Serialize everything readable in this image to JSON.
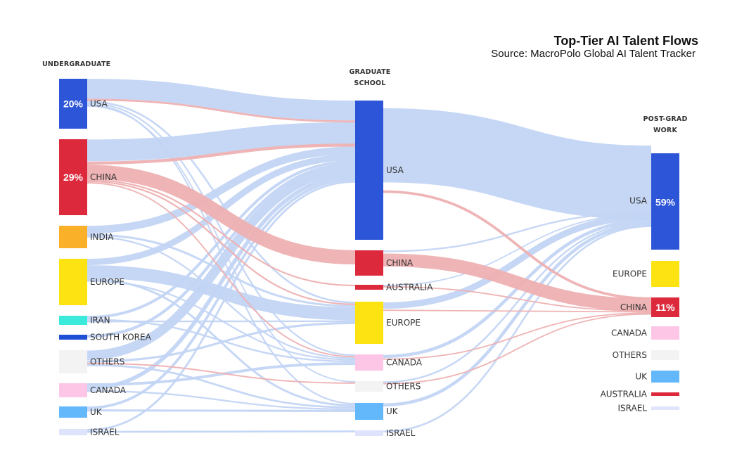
{
  "chart_data": {
    "type": "sankey",
    "title": "Top-Tier AI Talent Flows",
    "subtitle": "Source: MacroPolo Global AI Talent Tracker",
    "columns": [
      "UNDERGRADUATE",
      "GRADUATE SCHOOL",
      "POST-GRAD WORK"
    ],
    "column_heads": {
      "undergrad": "UNDERGRADUATE",
      "grad_line1": "GRADUATE",
      "grad_line2": "SCHOOL",
      "post_line1": "POST-GRAD",
      "post_line2": "WORK"
    },
    "colors": {
      "USA": "#2d55d8",
      "CHINA": "#dc2a3c",
      "INDIA": "#fbb02a",
      "EUROPE": "#fde312",
      "IRAN": "#3ceadb",
      "SOUTH KOREA": "#1e4fd4",
      "OTHERS": "#f3f3f3",
      "CANADA": "#fdc6e6",
      "UK": "#63b8fc",
      "ISRAEL": "#dfe3fb",
      "AUSTRALIA": "#dc2a3c",
      "flow_blue": "#c3d5f4",
      "flow_red": "#eeb0b1"
    },
    "nodes": {
      "undergrad": [
        {
          "name": "USA",
          "value": 20,
          "pct_label": "20%"
        },
        {
          "name": "CHINA",
          "value": 29,
          "pct_label": "29%"
        },
        {
          "name": "INDIA",
          "value": 8.5
        },
        {
          "name": "EUROPE",
          "value": 18
        },
        {
          "name": "IRAN",
          "value": 3
        },
        {
          "name": "SOUTH KOREA",
          "value": 2
        },
        {
          "name": "OTHERS",
          "value": 8
        },
        {
          "name": "CANADA",
          "value": 5
        },
        {
          "name": "UK",
          "value": 4
        },
        {
          "name": "ISRAEL",
          "value": 2.5
        }
      ],
      "grad": [
        {
          "name": "USA",
          "value": 56
        },
        {
          "name": "CHINA",
          "value": 10
        },
        {
          "name": "AUSTRALIA",
          "value": 2
        },
        {
          "name": "EUROPE",
          "value": 16
        },
        {
          "name": "CANADA",
          "value": 6
        },
        {
          "name": "OTHERS",
          "value": 4
        },
        {
          "name": "UK",
          "value": 6.5
        },
        {
          "name": "ISRAEL",
          "value": 2
        }
      ],
      "post": [
        {
          "name": "USA",
          "value": 59,
          "pct_label": "59%"
        },
        {
          "name": "EUROPE",
          "value": 10
        },
        {
          "name": "CHINA",
          "value": 11,
          "pct_label": "11%"
        },
        {
          "name": "CANADA",
          "value": 5
        },
        {
          "name": "OTHERS",
          "value": 3.5
        },
        {
          "name": "UK",
          "value": 4.5
        },
        {
          "name": "AUSTRALIA",
          "value": 1.5
        },
        {
          "name": "ISRAEL",
          "value": 1.5
        }
      ]
    },
    "flows_stage1": [
      {
        "from": "USA",
        "to": "USA",
        "value": 8,
        "color": "blue"
      },
      {
        "from": "USA",
        "to": "USA",
        "value": 0.8,
        "color": "red"
      },
      {
        "from": "USA",
        "to": "EUROPE",
        "value": 0.7,
        "color": "blue"
      },
      {
        "from": "USA",
        "to": "CANADA",
        "value": 0.6,
        "color": "blue"
      },
      {
        "from": "USA",
        "to": "UK",
        "value": 0.6,
        "color": "blue"
      },
      {
        "from": "USA",
        "to": "OTHERS",
        "value": 0.5,
        "color": "blue"
      },
      {
        "from": "CHINA",
        "to": "USA",
        "value": 8.5,
        "color": "blue"
      },
      {
        "from": "CHINA",
        "to": "USA",
        "value": 1.2,
        "color": "red"
      },
      {
        "from": "CHINA",
        "to": "CHINA",
        "value": 5.5,
        "color": "red"
      },
      {
        "from": "CHINA",
        "to": "AUSTRALIA",
        "value": 0.6,
        "color": "red"
      },
      {
        "from": "CHINA",
        "to": "EUROPE",
        "value": 0.6,
        "color": "red"
      },
      {
        "from": "CHINA",
        "to": "CANADA",
        "value": 0.5,
        "color": "red"
      },
      {
        "from": "INDIA",
        "to": "USA",
        "value": 3,
        "color": "blue"
      },
      {
        "from": "INDIA",
        "to": "EUROPE",
        "value": 0.8,
        "color": "blue"
      },
      {
        "from": "INDIA",
        "to": "CANADA",
        "value": 0.6,
        "color": "blue"
      },
      {
        "from": "EUROPE",
        "to": "USA",
        "value": 2.5,
        "color": "blue"
      },
      {
        "from": "EUROPE",
        "to": "EUROPE",
        "value": 5,
        "color": "blue"
      },
      {
        "from": "EUROPE",
        "to": "UK",
        "value": 0.8,
        "color": "blue"
      },
      {
        "from": "EUROPE",
        "to": "CANADA",
        "value": 0.6,
        "color": "blue"
      },
      {
        "from": "IRAN",
        "to": "USA",
        "value": 1,
        "color": "blue"
      },
      {
        "from": "IRAN",
        "to": "CANADA",
        "value": 0.6,
        "color": "blue"
      },
      {
        "from": "IRAN",
        "to": "EUROPE",
        "value": 0.6,
        "color": "blue"
      },
      {
        "from": "SOUTH KOREA",
        "to": "USA",
        "value": 1.2,
        "color": "blue"
      },
      {
        "from": "OTHERS",
        "to": "USA",
        "value": 3.5,
        "color": "blue"
      },
      {
        "from": "OTHERS",
        "to": "EUROPE",
        "value": 0.8,
        "color": "blue"
      },
      {
        "from": "OTHERS",
        "to": "OTHERS",
        "value": 0.5,
        "color": "red"
      },
      {
        "from": "OTHERS",
        "to": "UK",
        "value": 0.7,
        "color": "blue"
      },
      {
        "from": "CANADA",
        "to": "CANADA",
        "value": 1,
        "color": "blue"
      },
      {
        "from": "CANADA",
        "to": "USA",
        "value": 1.5,
        "color": "blue"
      },
      {
        "from": "CANADA",
        "to": "UK",
        "value": 0.6,
        "color": "blue"
      },
      {
        "from": "UK",
        "to": "USA",
        "value": 1,
        "color": "blue"
      },
      {
        "from": "UK",
        "to": "UK",
        "value": 0.8,
        "color": "blue"
      },
      {
        "from": "ISRAEL",
        "to": "USA",
        "value": 0.8,
        "color": "blue"
      },
      {
        "from": "ISRAEL",
        "to": "ISRAEL",
        "value": 0.7,
        "color": "blue"
      }
    ],
    "flows_stage2": [
      {
        "from": "USA",
        "to": "USA",
        "value": 36,
        "color": "blue"
      },
      {
        "from": "USA",
        "to": "CHINA",
        "value": 1.2,
        "color": "red"
      },
      {
        "from": "CHINA",
        "to": "USA",
        "value": 0.8,
        "color": "blue"
      },
      {
        "from": "CHINA",
        "to": "CHINA",
        "value": 6,
        "color": "red"
      },
      {
        "from": "AUSTRALIA",
        "to": "USA",
        "value": 0.6,
        "color": "blue"
      },
      {
        "from": "AUSTRALIA",
        "to": "CHINA",
        "value": 0.4,
        "color": "red"
      },
      {
        "from": "EUROPE",
        "to": "USA",
        "value": 3,
        "color": "blue"
      },
      {
        "from": "EUROPE",
        "to": "CHINA",
        "value": 0.5,
        "color": "red"
      },
      {
        "from": "CANADA",
        "to": "USA",
        "value": 1.5,
        "color": "blue"
      },
      {
        "from": "CANADA",
        "to": "CHINA",
        "value": 0.5,
        "color": "red"
      },
      {
        "from": "OTHERS",
        "to": "USA",
        "value": 0.8,
        "color": "blue"
      },
      {
        "from": "OTHERS",
        "to": "CHINA",
        "value": 0.4,
        "color": "red"
      },
      {
        "from": "UK",
        "to": "USA",
        "value": 1.5,
        "color": "blue"
      },
      {
        "from": "ISRAEL",
        "to": "USA",
        "value": 0.8,
        "color": "blue"
      }
    ]
  }
}
